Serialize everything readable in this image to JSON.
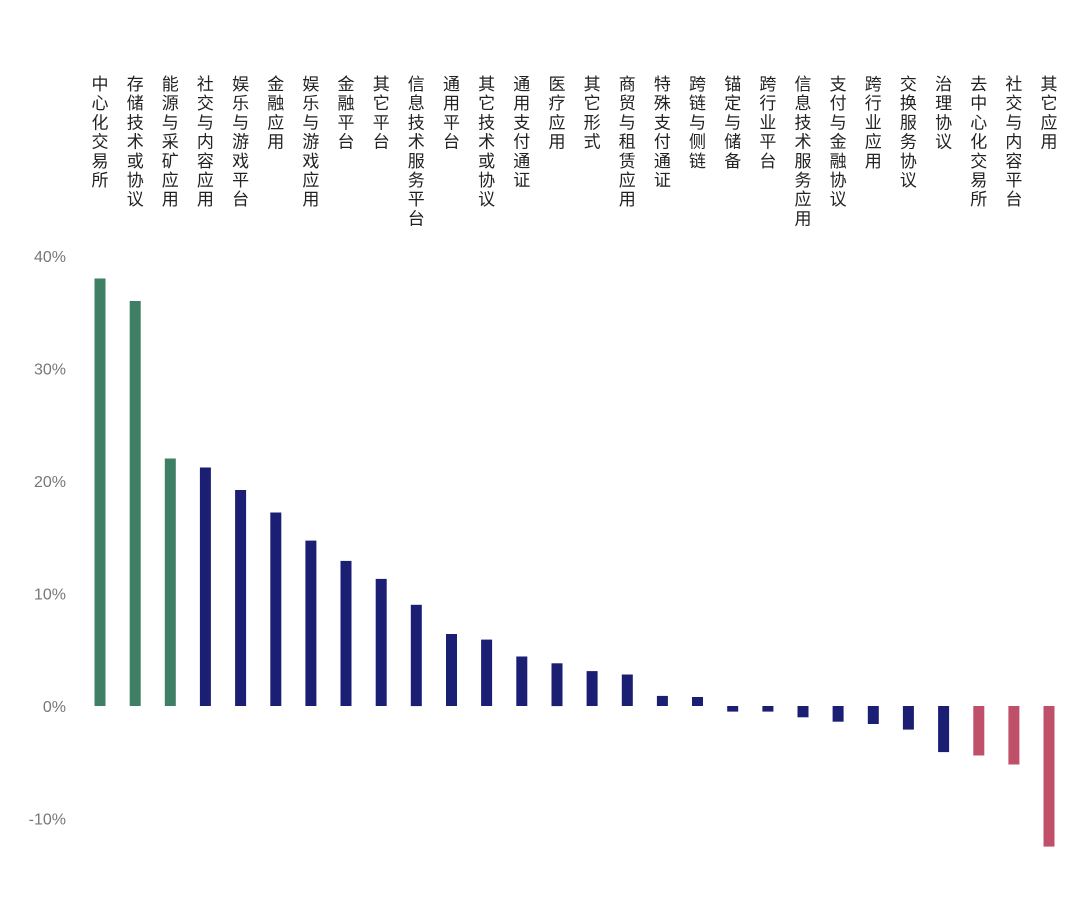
{
  "chart_data": {
    "type": "bar",
    "title": "",
    "xlabel": "",
    "ylabel": "",
    "ylim": [
      -12,
      42
    ],
    "yticks": [
      "40%",
      "30%",
      "20%",
      "10%",
      "0%",
      "-10%"
    ],
    "ytick_values": [
      40,
      30,
      20,
      10,
      0,
      -10
    ],
    "categories": [
      "中心化交易所",
      "存储技术或协议",
      "能源与采矿应用",
      "社交与内容应用",
      "娱乐与游戏平台",
      "金融应用",
      "娱乐与游戏应用",
      "金融平台",
      "其它平台",
      "信息技术服务平台",
      "通用平台",
      "其它技术或协议",
      "通用支付通证",
      "医疗应用",
      "其它形式",
      "商贸与租赁应用",
      "特殊支付通证",
      "跨链与侧链",
      "锚定与储备",
      "跨行业平台",
      "信息技术服务应用",
      "支付与金融协议",
      "跨行业应用",
      "交换服务协议",
      "治理协议",
      "去中心化交易所",
      "社交与内容平台",
      "其它应用"
    ],
    "values": [
      38.0,
      36.0,
      22.0,
      21.2,
      19.2,
      17.2,
      14.7,
      12.9,
      11.3,
      9.0,
      6.4,
      5.9,
      4.4,
      3.8,
      3.1,
      2.8,
      0.9,
      0.8,
      -0.5,
      -0.5,
      -1.0,
      -1.4,
      -1.6,
      -2.1,
      -4.1,
      -4.4,
      -5.2,
      -12.5
    ],
    "colors": [
      "#3f7f66",
      "#3f7f66",
      "#3f7f66",
      "#1b1f74",
      "#1b1f74",
      "#1b1f74",
      "#1b1f74",
      "#1b1f74",
      "#1b1f74",
      "#1b1f74",
      "#1b1f74",
      "#1b1f74",
      "#1b1f74",
      "#1b1f74",
      "#1b1f74",
      "#1b1f74",
      "#1b1f74",
      "#1b1f74",
      "#1b1f74",
      "#1b1f74",
      "#1b1f74",
      "#1b1f74",
      "#1b1f74",
      "#1b1f74",
      "#1b1f74",
      "#c0506a",
      "#c0506a",
      "#c0506a"
    ],
    "grid": false,
    "legend": "none"
  }
}
